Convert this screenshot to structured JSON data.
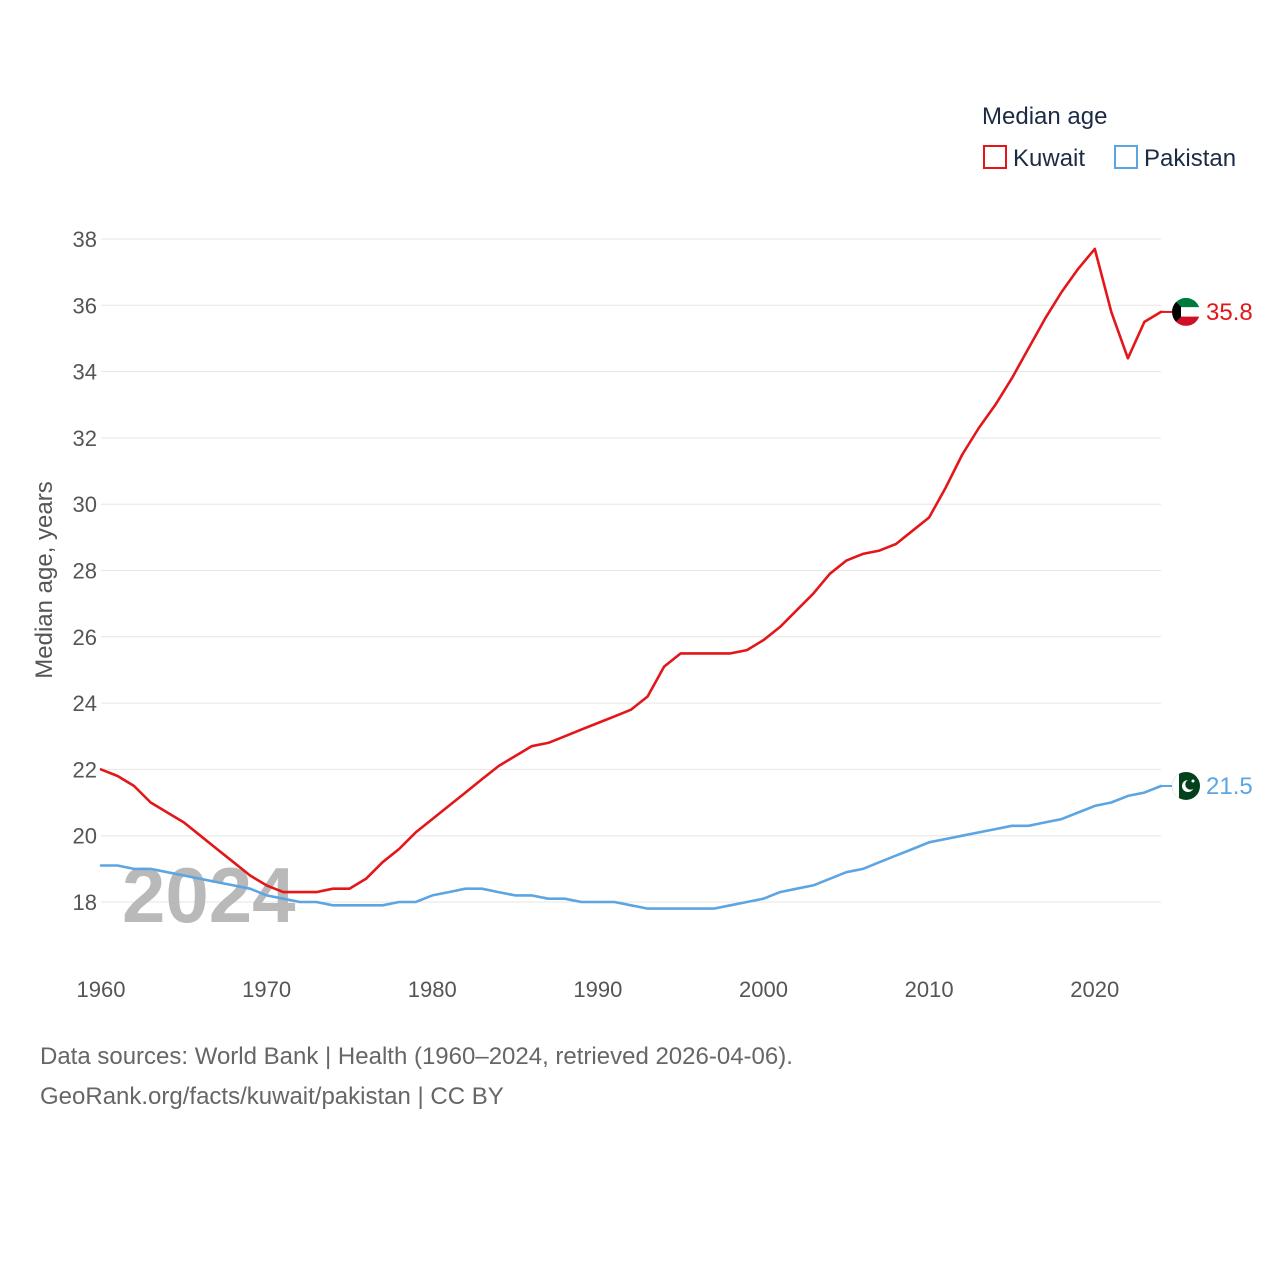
{
  "chart_data": {
    "type": "line",
    "title": "",
    "legend_title": "Median age",
    "legend_position": "top-right",
    "ylabel": "Median age, years",
    "xlabel": "",
    "xlim": [
      1960,
      2024
    ],
    "ylim": [
      16.5,
      38.4
    ],
    "yticks": [
      18,
      20,
      22,
      24,
      26,
      28,
      30,
      32,
      34,
      36,
      38
    ],
    "xticks": [
      1960,
      1970,
      1980,
      1990,
      2000,
      2010,
      2020
    ],
    "grid": true,
    "year_watermark": "2024",
    "x": [
      1960,
      1961,
      1962,
      1963,
      1964,
      1965,
      1966,
      1967,
      1968,
      1969,
      1970,
      1971,
      1972,
      1973,
      1974,
      1975,
      1976,
      1977,
      1978,
      1979,
      1980,
      1981,
      1982,
      1983,
      1984,
      1985,
      1986,
      1987,
      1988,
      1989,
      1990,
      1991,
      1992,
      1993,
      1994,
      1995,
      1996,
      1997,
      1998,
      1999,
      2000,
      2001,
      2002,
      2003,
      2004,
      2005,
      2006,
      2007,
      2008,
      2009,
      2010,
      2011,
      2012,
      2013,
      2014,
      2015,
      2016,
      2017,
      2018,
      2019,
      2020,
      2021,
      2022,
      2023,
      2024
    ],
    "series": [
      {
        "name": "Kuwait",
        "color": "#e3161a",
        "end_label": "35.8",
        "flag": "kuwait-flag",
        "values": [
          22.0,
          21.8,
          21.5,
          21.0,
          20.7,
          20.4,
          20.0,
          19.6,
          19.2,
          18.8,
          18.5,
          18.3,
          18.3,
          18.3,
          18.4,
          18.4,
          18.7,
          19.2,
          19.6,
          20.1,
          20.5,
          20.9,
          21.3,
          21.7,
          22.1,
          22.4,
          22.7,
          22.8,
          23.0,
          23.2,
          23.4,
          23.6,
          23.8,
          24.2,
          25.1,
          25.5,
          25.5,
          25.5,
          25.5,
          25.6,
          25.9,
          26.3,
          26.8,
          27.3,
          27.9,
          28.3,
          28.5,
          28.6,
          28.8,
          29.2,
          29.6,
          30.5,
          31.5,
          32.3,
          33.0,
          33.8,
          34.7,
          35.6,
          36.4,
          37.1,
          37.7,
          35.8,
          34.4,
          35.5,
          35.8
        ]
      },
      {
        "name": "Pakistan",
        "color": "#5ca5e3",
        "end_label": "21.5",
        "flag": "pakistan-flag",
        "values": [
          19.1,
          19.1,
          19.0,
          19.0,
          18.9,
          18.8,
          18.7,
          18.6,
          18.5,
          18.4,
          18.2,
          18.1,
          18.0,
          18.0,
          17.9,
          17.9,
          17.9,
          17.9,
          18.0,
          18.0,
          18.2,
          18.3,
          18.4,
          18.4,
          18.3,
          18.2,
          18.2,
          18.1,
          18.1,
          18.0,
          18.0,
          18.0,
          17.9,
          17.8,
          17.8,
          17.8,
          17.8,
          17.8,
          17.9,
          18.0,
          18.1,
          18.3,
          18.4,
          18.5,
          18.7,
          18.9,
          19.0,
          19.2,
          19.4,
          19.6,
          19.8,
          19.9,
          20.0,
          20.1,
          20.2,
          20.3,
          20.3,
          20.4,
          20.5,
          20.7,
          20.9,
          21.0,
          21.2,
          21.3,
          21.5
        ]
      }
    ]
  },
  "footer": {
    "line1": "Data sources: World Bank | Health (1960–2024, retrieved 2026-04-06).",
    "line2": "GeoRank.org/facts/kuwait/pakistan | CC BY"
  }
}
